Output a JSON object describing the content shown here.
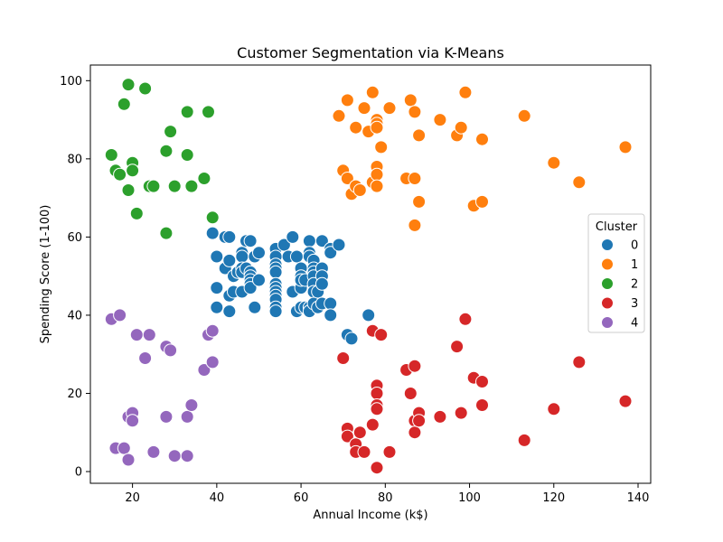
{
  "chart_data": {
    "type": "scatter",
    "title": "Customer Segmentation via K-Means",
    "xlabel": "Annual Income (k$)",
    "ylabel": "Spending Score (1-100)",
    "xlim": [
      10,
      143
    ],
    "ylim": [
      -3,
      104
    ],
    "xticks": [
      20,
      40,
      60,
      80,
      100,
      120,
      140
    ],
    "yticks": [
      0,
      20,
      40,
      60,
      80,
      100
    ],
    "grid": false,
    "legend": {
      "title": "Cluster",
      "placement": "center-right"
    },
    "series": [
      {
        "name": "0",
        "color": "#1f77b4",
        "points": [
          [
            39,
            61
          ],
          [
            40,
            55
          ],
          [
            40,
            47
          ],
          [
            40,
            42
          ],
          [
            42,
            52
          ],
          [
            42,
            60
          ],
          [
            43,
            60
          ],
          [
            43,
            54
          ],
          [
            43,
            45
          ],
          [
            43,
            41
          ],
          [
            44,
            50
          ],
          [
            44,
            46
          ],
          [
            45,
            51
          ],
          [
            46,
            56
          ],
          [
            46,
            55
          ],
          [
            46,
            52
          ],
          [
            46,
            51
          ],
          [
            46,
            46
          ],
          [
            47,
            59
          ],
          [
            47,
            52
          ],
          [
            48,
            59
          ],
          [
            48,
            51
          ],
          [
            48,
            50
          ],
          [
            48,
            49
          ],
          [
            48,
            48
          ],
          [
            48,
            47
          ],
          [
            49,
            55
          ],
          [
            49,
            42
          ],
          [
            50,
            56
          ],
          [
            50,
            49
          ],
          [
            54,
            57
          ],
          [
            54,
            55
          ],
          [
            54,
            53
          ],
          [
            54,
            52
          ],
          [
            54,
            51
          ],
          [
            54,
            48
          ],
          [
            54,
            47
          ],
          [
            54,
            46
          ],
          [
            54,
            45
          ],
          [
            54,
            44
          ],
          [
            54,
            42
          ],
          [
            54,
            41
          ],
          [
            56,
            58
          ],
          [
            57,
            55
          ],
          [
            58,
            60
          ],
          [
            58,
            46
          ],
          [
            59,
            55
          ],
          [
            59,
            41
          ],
          [
            60,
            52
          ],
          [
            60,
            47
          ],
          [
            60,
            50
          ],
          [
            60,
            42
          ],
          [
            60,
            49
          ],
          [
            61,
            49
          ],
          [
            61,
            42
          ],
          [
            62,
            59
          ],
          [
            62,
            56
          ],
          [
            62,
            55
          ],
          [
            62,
            42
          ],
          [
            62,
            41
          ],
          [
            63,
            54
          ],
          [
            63,
            52
          ],
          [
            63,
            51
          ],
          [
            63,
            50
          ],
          [
            63,
            48
          ],
          [
            63,
            46
          ],
          [
            63,
            43
          ],
          [
            64,
            46
          ],
          [
            64,
            42
          ],
          [
            65,
            59
          ],
          [
            65,
            52
          ],
          [
            65,
            50
          ],
          [
            65,
            48
          ],
          [
            65,
            43
          ],
          [
            67,
            57
          ],
          [
            67,
            56
          ],
          [
            67,
            43
          ],
          [
            67,
            40
          ],
          [
            69,
            58
          ],
          [
            71,
            35
          ],
          [
            72,
            34
          ],
          [
            76,
            40
          ]
        ]
      },
      {
        "name": "1",
        "color": "#ff7f0e",
        "points": [
          [
            69,
            91
          ],
          [
            70,
            77
          ],
          [
            71,
            95
          ],
          [
            71,
            75
          ],
          [
            72,
            71
          ],
          [
            73,
            88
          ],
          [
            73,
            73
          ],
          [
            74,
            72
          ],
          [
            75,
            93
          ],
          [
            76,
            87
          ],
          [
            77,
            97
          ],
          [
            77,
            74
          ],
          [
            78,
            90
          ],
          [
            78,
            89
          ],
          [
            78,
            88
          ],
          [
            78,
            78
          ],
          [
            78,
            76
          ],
          [
            78,
            73
          ],
          [
            79,
            83
          ],
          [
            81,
            93
          ],
          [
            85,
            75
          ],
          [
            86,
            95
          ],
          [
            87,
            92
          ],
          [
            87,
            75
          ],
          [
            87,
            63
          ],
          [
            88,
            86
          ],
          [
            88,
            69
          ],
          [
            93,
            90
          ],
          [
            97,
            86
          ],
          [
            98,
            88
          ],
          [
            99,
            97
          ],
          [
            101,
            68
          ],
          [
            103,
            85
          ],
          [
            103,
            69
          ],
          [
            113,
            91
          ],
          [
            120,
            79
          ],
          [
            126,
            74
          ],
          [
            137,
            83
          ]
        ]
      },
      {
        "name": "2",
        "color": "#2ca02c",
        "points": [
          [
            15,
            81
          ],
          [
            16,
            77
          ],
          [
            17,
            76
          ],
          [
            18,
            94
          ],
          [
            19,
            99
          ],
          [
            19,
            72
          ],
          [
            20,
            79
          ],
          [
            20,
            77
          ],
          [
            21,
            66
          ],
          [
            23,
            98
          ],
          [
            24,
            73
          ],
          [
            25,
            73
          ],
          [
            28,
            82
          ],
          [
            28,
            61
          ],
          [
            29,
            87
          ],
          [
            30,
            73
          ],
          [
            33,
            92
          ],
          [
            33,
            81
          ],
          [
            34,
            73
          ],
          [
            37,
            75
          ],
          [
            38,
            92
          ],
          [
            39,
            65
          ]
        ]
      },
      {
        "name": "3",
        "color": "#d62728",
        "points": [
          [
            70,
            29
          ],
          [
            71,
            11
          ],
          [
            71,
            9
          ],
          [
            73,
            7
          ],
          [
            73,
            5
          ],
          [
            74,
            10
          ],
          [
            75,
            5
          ],
          [
            77,
            36
          ],
          [
            77,
            12
          ],
          [
            78,
            22
          ],
          [
            78,
            20
          ],
          [
            78,
            17
          ],
          [
            78,
            16
          ],
          [
            78,
            1
          ],
          [
            79,
            35
          ],
          [
            81,
            5
          ],
          [
            85,
            26
          ],
          [
            86,
            20
          ],
          [
            87,
            27
          ],
          [
            87,
            13
          ],
          [
            87,
            10
          ],
          [
            88,
            15
          ],
          [
            88,
            13
          ],
          [
            93,
            14
          ],
          [
            97,
            32
          ],
          [
            98,
            15
          ],
          [
            99,
            39
          ],
          [
            101,
            24
          ],
          [
            103,
            23
          ],
          [
            103,
            17
          ],
          [
            113,
            8
          ],
          [
            120,
            16
          ],
          [
            126,
            28
          ],
          [
            137,
            18
          ]
        ]
      },
      {
        "name": "4",
        "color": "#9467bd",
        "points": [
          [
            15,
            39
          ],
          [
            16,
            6
          ],
          [
            17,
            40
          ],
          [
            18,
            6
          ],
          [
            19,
            14
          ],
          [
            19,
            3
          ],
          [
            20,
            15
          ],
          [
            20,
            13
          ],
          [
            21,
            35
          ],
          [
            23,
            29
          ],
          [
            24,
            35
          ],
          [
            25,
            5
          ],
          [
            28,
            32
          ],
          [
            28,
            14
          ],
          [
            29,
            31
          ],
          [
            30,
            4
          ],
          [
            33,
            14
          ],
          [
            33,
            4
          ],
          [
            34,
            17
          ],
          [
            37,
            26
          ],
          [
            38,
            35
          ],
          [
            39,
            36
          ],
          [
            39,
            28
          ]
        ]
      }
    ]
  }
}
